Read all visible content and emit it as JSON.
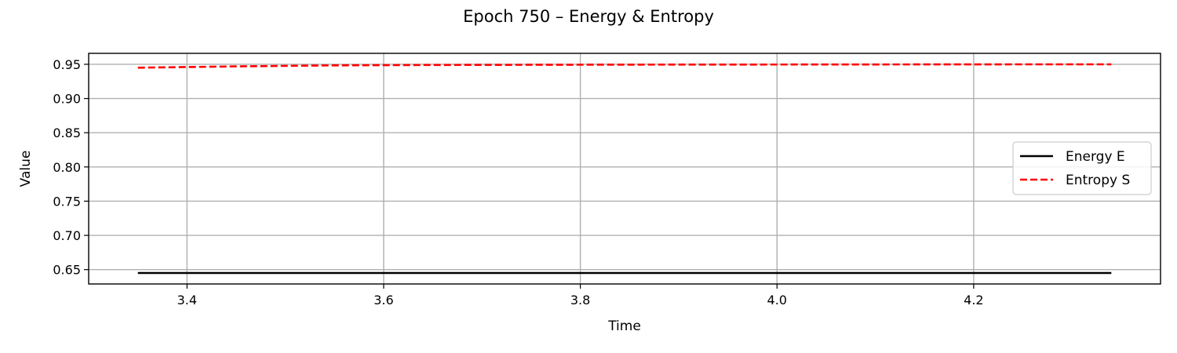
{
  "chart_data": {
    "type": "line",
    "title": "Epoch 750 – Energy & Entropy",
    "xlabel": "Time",
    "ylabel": "Value",
    "xlim": [
      3.3,
      4.39
    ],
    "ylim": [
      0.629,
      0.966
    ],
    "xticks": [
      3.4,
      3.6,
      3.8,
      4.0,
      4.2
    ],
    "xtick_labels": [
      "3.4",
      "3.6",
      "3.8",
      "4.0",
      "4.2"
    ],
    "yticks": [
      0.65,
      0.7,
      0.75,
      0.8,
      0.85,
      0.9,
      0.95
    ],
    "ytick_labels": [
      "0.65",
      "0.70",
      "0.75",
      "0.80",
      "0.85",
      "0.90",
      "0.95"
    ],
    "grid": true,
    "legend_position": "center-right",
    "series": [
      {
        "name": "Energy E",
        "color": "#000000",
        "style": "solid",
        "x": [
          3.35,
          3.5,
          3.7,
          3.9,
          4.1,
          4.3,
          4.34
        ],
        "y": [
          0.645,
          0.645,
          0.645,
          0.645,
          0.645,
          0.645,
          0.645
        ]
      },
      {
        "name": "Entropy S",
        "color": "#ff0000",
        "style": "dashed",
        "x": [
          3.35,
          3.45,
          3.55,
          3.65,
          3.75,
          3.85,
          3.95,
          4.05,
          4.15,
          4.25,
          4.34
        ],
        "y": [
          0.945,
          0.947,
          0.9485,
          0.949,
          0.9493,
          0.9495,
          0.9496,
          0.9497,
          0.9498,
          0.9499,
          0.95
        ]
      }
    ]
  }
}
